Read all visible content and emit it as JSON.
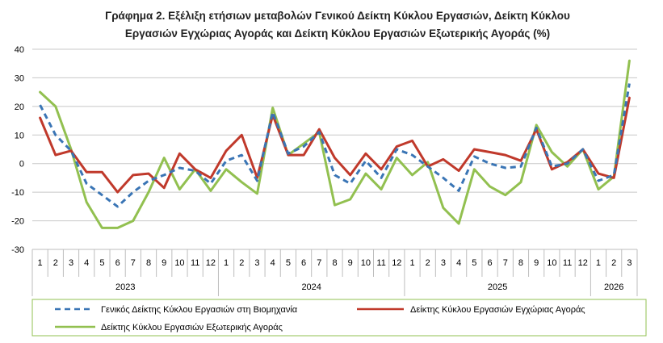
{
  "chart_data": {
    "type": "line",
    "title": "Γράφημα 2. Εξέλιξη ετήσιων μεταβολών Γενικού Δείκτη Κύκλου Εργασιών,  Δείκτη Κύκλου Εργασιών Εγχώριας Αγοράς και Δείκτη Κύκλου Εργασιών Εξωτερικής Αγοράς  (%)",
    "title_lines": [
      "Γράφημα 2. Εξέλιξη ετήσιων μεταβολών Γενικού Δείκτη Κύκλου Εργασιών,  Δείκτη Κύκλου",
      "Εργασιών Εγχώριας Αγοράς και Δείκτη Κύκλου Εργασιών Εξωτερικής Αγοράς  (%)"
    ],
    "ylim": [
      -30,
      40
    ],
    "yticks": [
      -30,
      -20,
      -10,
      0,
      10,
      20,
      30,
      40
    ],
    "grid": "horizontal",
    "legend_position": "bottom",
    "categories": [
      "1",
      "2",
      "3",
      "4",
      "5",
      "6",
      "7",
      "8",
      "9",
      "10",
      "11",
      "12",
      "1",
      "2",
      "3",
      "4",
      "5",
      "6",
      "7",
      "8",
      "9",
      "10",
      "11",
      "12",
      "1",
      "2",
      "3",
      "4",
      "5",
      "6",
      "7",
      "8",
      "9",
      "10",
      "11",
      "12",
      "1",
      "2",
      "3"
    ],
    "years": [
      {
        "label": "2023",
        "months": 12
      },
      {
        "label": "2024",
        "months": 12
      },
      {
        "label": "2025",
        "months": 12
      },
      {
        "label": "2026",
        "months": 3
      }
    ],
    "series": [
      {
        "name": "Γενικός Δείκτης Κύκλου Εργασιών στη Βιομηχανία",
        "color": "#3a75b5",
        "style": "dashed",
        "values": [
          20.5,
          10,
          4.5,
          -7,
          -11,
          -15,
          -10,
          -6,
          -4,
          -1.5,
          -2.5,
          -7,
          1,
          3,
          -6,
          18,
          3.5,
          6,
          11,
          -4,
          -7,
          1,
          -5,
          5,
          3,
          -1,
          -5,
          -9.5,
          2.5,
          0,
          -1.5,
          -1,
          12.5,
          -1,
          0,
          5,
          -6,
          -4,
          28
        ]
      },
      {
        "name": "Δείκτης Κύκλου Εργασιών Εγχώριας Αγοράς",
        "color": "#c0392b",
        "style": "solid",
        "values": [
          16,
          3,
          4.5,
          -3,
          -3,
          -10,
          -4,
          -3.5,
          -8.5,
          3.5,
          -2,
          -5,
          4.5,
          10,
          -5,
          17,
          3,
          3,
          12,
          2,
          -4,
          3.5,
          -2,
          6,
          8,
          -1,
          1.5,
          -2.5,
          5,
          4,
          3,
          1,
          12,
          -2,
          0.5,
          5,
          -3.5,
          -5,
          23
        ]
      },
      {
        "name": "Δείκτης Κύκλου Εργασιών  Εξωτερικής Αγοράς",
        "color": "#92c050",
        "style": "solid",
        "values": [
          25,
          20,
          5,
          -13.5,
          -22.5,
          -22.5,
          -20,
          -10,
          2,
          -9,
          -2,
          -9.5,
          -2,
          -6.5,
          -10.5,
          19.5,
          3,
          7,
          11,
          -14.5,
          -12.5,
          -3.5,
          -9,
          2,
          -4,
          0.5,
          -15.5,
          -21,
          -2,
          -8,
          -11,
          -6.5,
          13.5,
          4,
          -1,
          5,
          -9,
          -4.5,
          36
        ]
      }
    ]
  }
}
